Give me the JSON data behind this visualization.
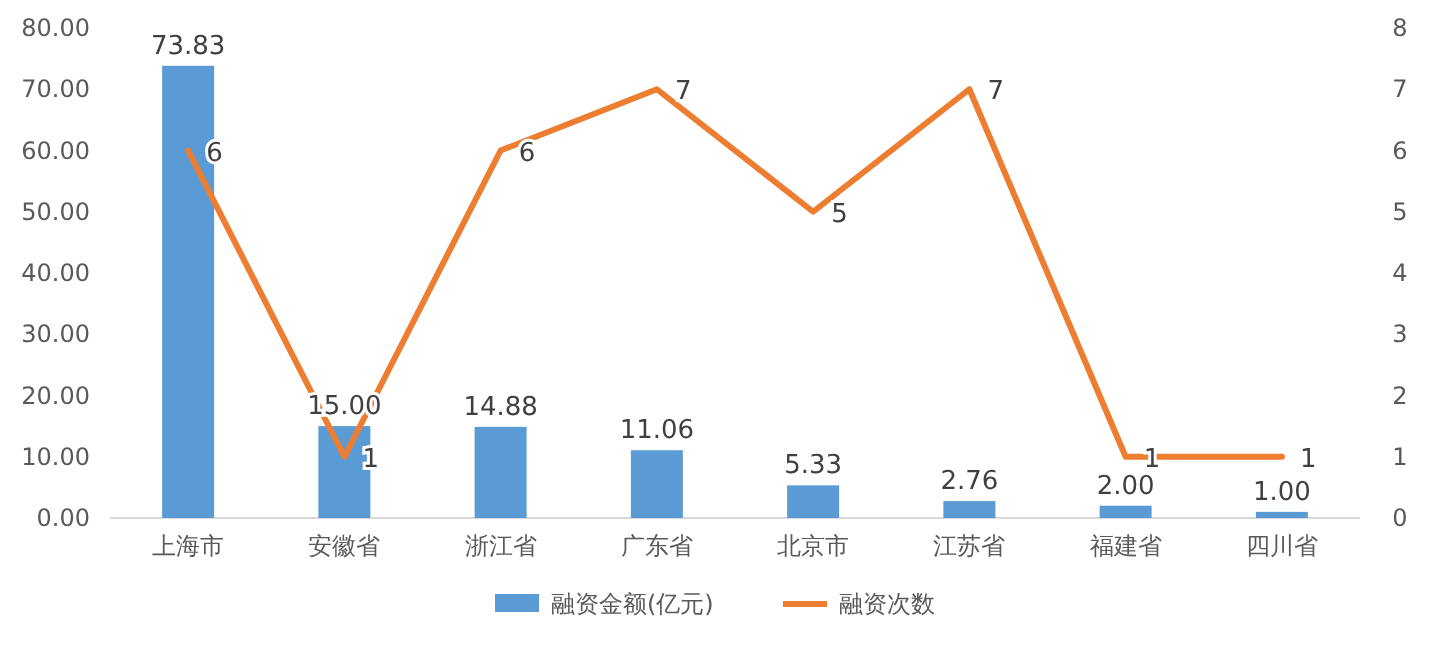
{
  "chart_data": {
    "type": "bar",
    "categories": [
      "上海市",
      "安徽省",
      "浙江省",
      "广东省",
      "北京市",
      "江苏省",
      "福建省",
      "四川省"
    ],
    "series": [
      {
        "name": "融资金额(亿元)",
        "color": "#5b9bd5",
        "values": [
          73.83,
          15.0,
          14.88,
          11.06,
          5.33,
          2.76,
          2.0,
          1.0
        ],
        "value_labels": [
          "73.83",
          "15.00",
          "14.88",
          "11.06",
          "5.33",
          "2.76",
          "2.00",
          "1.00"
        ]
      },
      {
        "name": "融资次数",
        "type": "line",
        "axis": "y2",
        "color": "#ed7d31",
        "values": [
          6,
          1,
          6,
          7,
          5,
          7,
          1,
          1
        ],
        "value_labels": [
          "6",
          "1",
          "6",
          "7",
          "5",
          "7",
          "1",
          "1"
        ]
      }
    ],
    "ylim": [
      0,
      80
    ],
    "yticks": [
      {
        "value": 0,
        "label": "0.00"
      },
      {
        "value": 10,
        "label": "10.00"
      },
      {
        "value": 20,
        "label": "20.00"
      },
      {
        "value": 30,
        "label": "30.00"
      },
      {
        "value": 40,
        "label": "40.00"
      },
      {
        "value": 50,
        "label": "50.00"
      },
      {
        "value": 60,
        "label": "60.00"
      },
      {
        "value": 70,
        "label": "70.00"
      },
      {
        "value": 80,
        "label": "80.00"
      }
    ],
    "y2lim": [
      0,
      8
    ],
    "y2ticks": [
      0,
      1,
      2,
      3,
      4,
      5,
      6,
      7,
      8
    ],
    "legend": "bottom",
    "grid": false
  }
}
